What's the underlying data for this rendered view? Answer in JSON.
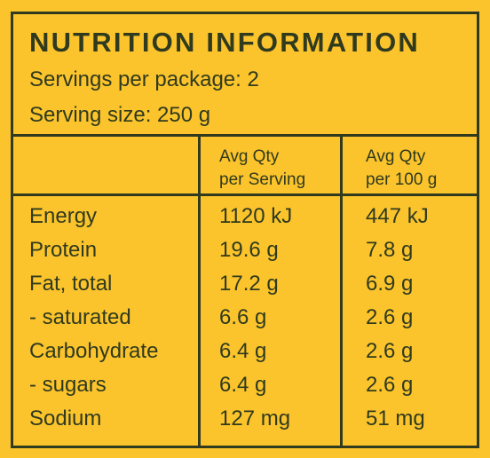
{
  "title": "NUTRITION INFORMATION",
  "servings_per_package": "Servings per package: 2",
  "serving_size": "Serving size: 250 g",
  "columns": {
    "per_serving_line1": "Avg Qty",
    "per_serving_line2": "per Serving",
    "per_100g_line1": "Avg Qty",
    "per_100g_line2": "per 100 g"
  },
  "rows": [
    {
      "nutrient": "Energy",
      "per_serving": "1120 kJ",
      "per_100g": "447 kJ"
    },
    {
      "nutrient": "Protein",
      "per_serving": "19.6 g",
      "per_100g": "7.8 g"
    },
    {
      "nutrient": "Fat, total",
      "per_serving": "17.2 g",
      "per_100g": "6.9 g"
    },
    {
      "nutrient": "- saturated",
      "per_serving": "6.6 g",
      "per_100g": "2.6 g"
    },
    {
      "nutrient": "Carbohydrate",
      "per_serving": "6.4 g",
      "per_100g": "2.6 g"
    },
    {
      "nutrient": "- sugars",
      "per_serving": "6.4 g",
      "per_100g": "2.6 g"
    },
    {
      "nutrient": "Sodium",
      "per_serving": "127 mg",
      "per_100g": "51 mg"
    }
  ],
  "colors": {
    "background": "#fcc42c",
    "ink": "#2f3a1e"
  }
}
